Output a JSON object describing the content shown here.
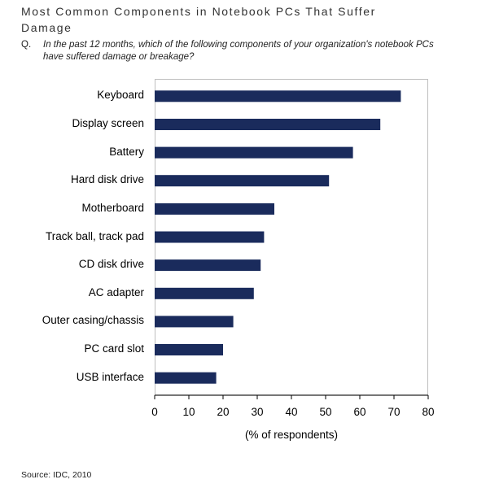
{
  "header": {
    "title": "Most Common Components in Notebook PCs That Suffer Damage",
    "question_marker": "Q.",
    "question_text": "In the past 12 months, which of the following components of your organization's notebook PCs have suffered damage or breakage?"
  },
  "footer": {
    "source": "Source: IDC, 2010"
  },
  "colors": {
    "bar": "#1a2b5c",
    "axis": "#000000"
  },
  "chart_data": {
    "type": "bar",
    "orientation": "horizontal",
    "title": "Most Common Components in Notebook PCs That Suffer Damage",
    "categories": [
      "Keyboard",
      "Display screen",
      "Battery",
      "Hard disk drive",
      "Motherboard",
      "Track ball, track pad",
      "CD disk drive",
      "AC adapter",
      "Outer casing/chassis",
      "PC card slot",
      "USB interface"
    ],
    "values": [
      72,
      66,
      58,
      51,
      35,
      32,
      31,
      29,
      23,
      20,
      18
    ],
    "xlabel": "(% of respondents)",
    "ylabel": "",
    "xlim": [
      0,
      80
    ],
    "xticks": [
      "0",
      "10",
      "20",
      "30",
      "40",
      "50",
      "60",
      "70",
      "80"
    ],
    "grid": false,
    "legend": "none"
  }
}
